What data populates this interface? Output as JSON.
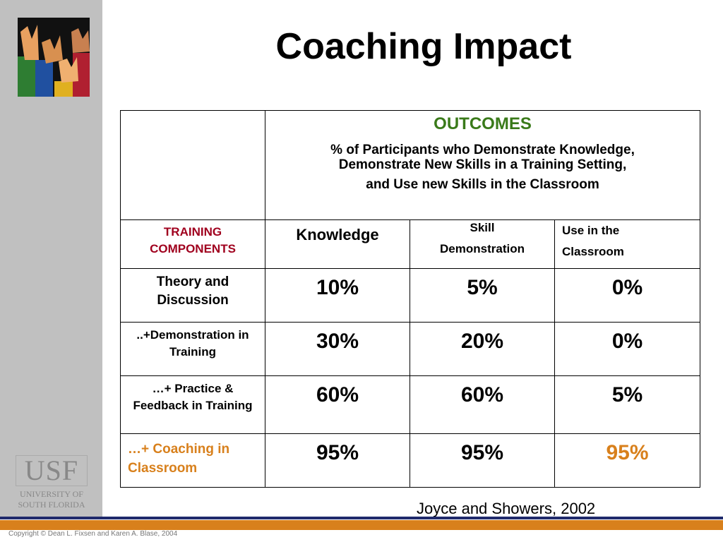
{
  "title": "Coaching Impact",
  "logo": {
    "mark": "USF",
    "lines": [
      "UNIVERSITY OF",
      "SOUTH FLORIDA"
    ]
  },
  "table": {
    "outcomes": "OUTCOMES",
    "description": [
      "% of Participants who Demonstrate Knowledge,",
      "Demonstrate New Skills in a Training Setting,",
      "and Use new Skills in the Classroom"
    ],
    "row_header": [
      "TRAINING",
      "COMPONENTS"
    ],
    "columns": [
      [
        "Knowledge"
      ],
      [
        "Skill",
        "Demonstration"
      ],
      [
        "Use in the",
        "Classroom"
      ]
    ],
    "rows": [
      [
        "Theory and Discussion",
        "10%",
        "5%",
        "0%"
      ],
      [
        "..+Demonstration in Training",
        "30%",
        "20%",
        "0%"
      ],
      [
        "…+ Practice & Feedback in Training",
        "60%",
        "60%",
        "5%"
      ],
      [
        "…+ Coaching in Classroom",
        "95%",
        "95%",
        "95%"
      ]
    ]
  },
  "citation": "Joyce and Showers, 2002",
  "copyright": "Copyright © Dean L. Fixsen and Karen A. Blase, 2004"
}
